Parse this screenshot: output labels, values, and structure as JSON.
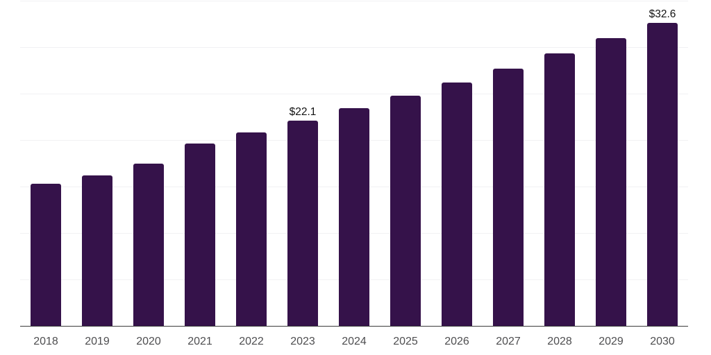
{
  "chart_data": {
    "type": "bar",
    "title": "",
    "xlabel": "",
    "ylabel": "",
    "categories": [
      "2018",
      "2019",
      "2020",
      "2021",
      "2022",
      "2023",
      "2024",
      "2025",
      "2026",
      "2027",
      "2028",
      "2029",
      "2030"
    ],
    "values": [
      15.3,
      16.2,
      17.5,
      19.6,
      20.8,
      22.1,
      23.4,
      24.8,
      26.2,
      27.7,
      29.3,
      31.0,
      32.6
    ],
    "value_labels": [
      "",
      "",
      "",
      "",
      "",
      "$22.1",
      "",
      "",
      "",
      "",
      "",
      "",
      "$32.6"
    ],
    "ylim": [
      0,
      35
    ],
    "gridline_step": 5,
    "grid": "horizontal",
    "legend": "none",
    "colors": {
      "bar": "#35124A",
      "axis_line": "#3C3C3C",
      "gridline": "#F1F1F3",
      "value_label": "#111111",
      "tick_label": "#4E4E50",
      "background": "#FFFFFF"
    }
  }
}
